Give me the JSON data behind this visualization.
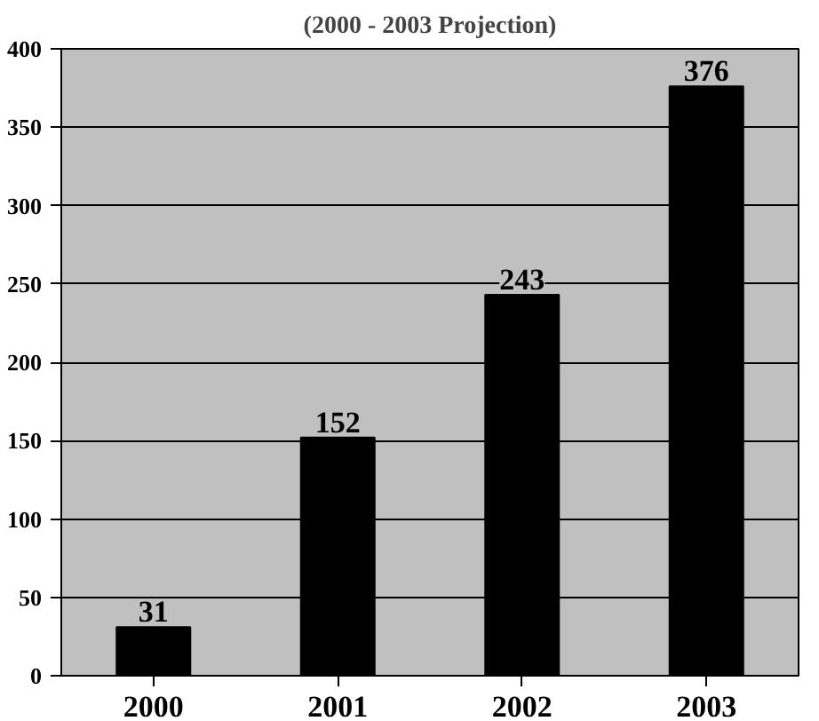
{
  "chart_data": {
    "type": "bar",
    "title": "(2000 - 2003 Projection)",
    "categories": [
      "2000",
      "2001",
      "2002",
      "2003"
    ],
    "values": [
      31,
      152,
      243,
      376
    ],
    "color": "#000000",
    "ylim": [
      0,
      400
    ],
    "yticks": [
      0,
      50,
      100,
      150,
      200,
      250,
      300,
      350,
      400
    ],
    "grid": "y",
    "data_labels": true
  }
}
